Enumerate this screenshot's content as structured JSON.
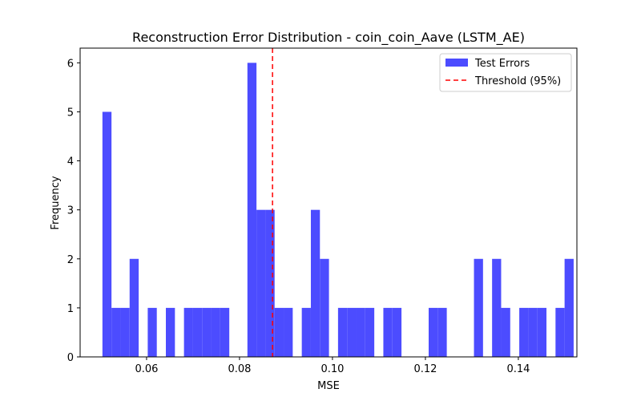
{
  "chart_data": {
    "type": "bar",
    "title": "Reconstruction Error Distribution - coin_coin_Aave (LSTM_AE)",
    "xlabel": "MSE",
    "ylabel": "Frequency",
    "xlim": [
      0.0457,
      0.1526
    ],
    "ylim": [
      0,
      6.3
    ],
    "x_ticks": [
      0.06,
      0.08,
      0.1,
      0.12,
      0.14
    ],
    "x_tick_labels": [
      "0.06",
      "0.08",
      "0.10",
      "0.12",
      "0.14"
    ],
    "y_ticks": [
      0,
      1,
      2,
      3,
      4,
      5,
      6
    ],
    "y_tick_labels": [
      "0",
      "1",
      "2",
      "3",
      "4",
      "5",
      "6"
    ],
    "bin_start": 0.0505,
    "bin_width": 0.00195,
    "counts": [
      5,
      1,
      1,
      2,
      0,
      1,
      0,
      1,
      0,
      1,
      1,
      1,
      1,
      1,
      0,
      0,
      6,
      3,
      3,
      1,
      1,
      0,
      1,
      3,
      2,
      0,
      1,
      1,
      1,
      1,
      0,
      1,
      1,
      0,
      0,
      0,
      1,
      1,
      0,
      0,
      0,
      2,
      0,
      2,
      1,
      0,
      1,
      1,
      1,
      0,
      1,
      2
    ],
    "series": [
      {
        "name": "Test Errors",
        "color": "#4c4cff"
      }
    ],
    "threshold": {
      "name": "Threshold (95%)",
      "value": 0.0871,
      "color": "#ff0000"
    },
    "legend_position": "top-right",
    "grid": false
  }
}
